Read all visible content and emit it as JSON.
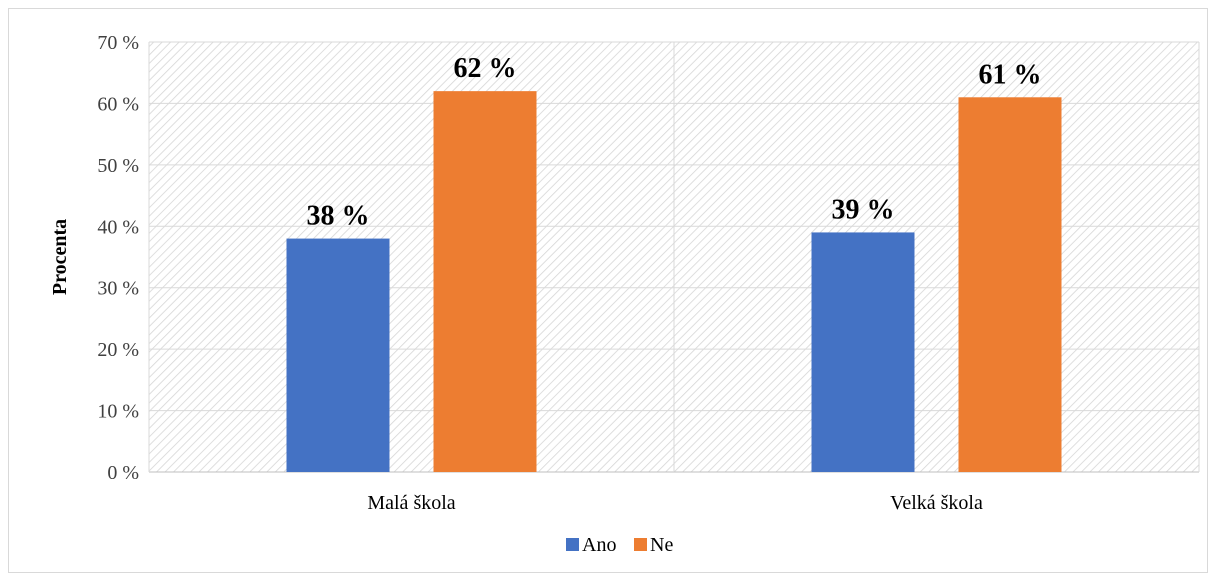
{
  "chart_data": {
    "type": "bar",
    "categories": [
      "Malá škola",
      "Velká škola"
    ],
    "series": [
      {
        "name": "Ano",
        "values": [
          38,
          39
        ],
        "color": "#4472c4",
        "labels": [
          "38 %",
          "39 %"
        ]
      },
      {
        "name": "Ne",
        "values": [
          62,
          61
        ],
        "color": "#ed7d31",
        "labels": [
          "62 %",
          "61 %"
        ]
      }
    ],
    "ylabel": "Procenta",
    "ylim": [
      0,
      70
    ],
    "yticks": [
      "0 %",
      "10 %",
      "20 %",
      "30 %",
      "40 %",
      "50 %",
      "60 %",
      "70 %"
    ],
    "grid": true,
    "legend_position": "bottom",
    "background_pattern": "diagonal-hatch"
  }
}
